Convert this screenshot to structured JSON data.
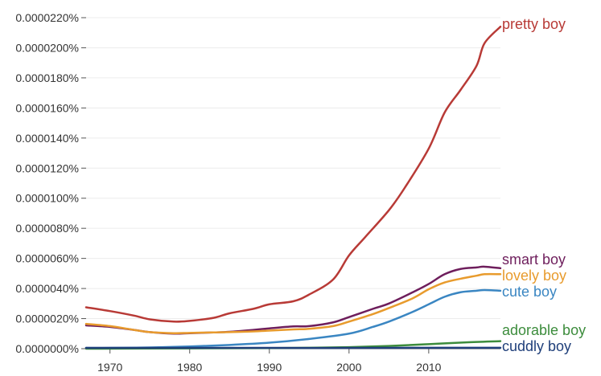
{
  "chart_data": {
    "type": "line",
    "title": "",
    "xlabel": "",
    "ylabel": "",
    "xlim": [
      1967,
      2019
    ],
    "ylim": [
      0,
      2.22e-07
    ],
    "grid": true,
    "x_ticks": [
      1970,
      1980,
      1990,
      2000,
      2010
    ],
    "x_tick_labels": [
      "1970",
      "1980",
      "1990",
      "2000",
      "2010"
    ],
    "y_ticks": [
      0,
      2e-08,
      4e-08,
      6e-08,
      8e-08,
      1e-07,
      1.2e-07,
      1.4e-07,
      1.6e-07,
      1.8e-07,
      2e-07,
      2.2e-07
    ],
    "y_tick_labels": [
      "0.0000000%",
      "0.0000020%",
      "0.0000040%",
      "0.0000060%",
      "0.0000080%",
      "0.0000100%",
      "0.0000120%",
      "0.0000140%",
      "0.0000160%",
      "0.0000180%",
      "0.0000200%",
      "0.0000220%"
    ],
    "legend": "direct labels at line ends",
    "series": [
      {
        "name": "pretty boy",
        "color": "#b83a36",
        "x": [
          1967,
          1970,
          1973,
          1975,
          1978,
          1980,
          1983,
          1985,
          1988,
          1990,
          1993,
          1995,
          1998,
          2000,
          2002,
          2005,
          2007,
          2010,
          2012,
          2014,
          2016,
          2017,
          2019
        ],
        "values": [
          2.75e-08,
          2.5e-08,
          2.2e-08,
          1.95e-08,
          1.8e-08,
          1.85e-08,
          2.05e-08,
          2.35e-08,
          2.65e-08,
          2.95e-08,
          3.15e-08,
          3.6e-08,
          4.6e-08,
          6.2e-08,
          7.4e-08,
          9.2e-08,
          1.07e-07,
          1.33e-07,
          1.57e-07,
          1.72e-07,
          1.88e-07,
          2.03e-07,
          2.14e-07
        ]
      },
      {
        "name": "smart boy",
        "color": "#6e1e5c",
        "x": [
          1967,
          1970,
          1973,
          1975,
          1978,
          1980,
          1983,
          1985,
          1988,
          1990,
          1993,
          1995,
          1998,
          2000,
          2003,
          2005,
          2008,
          2010,
          2012,
          2014,
          2016,
          2017,
          2019
        ],
        "values": [
          1.55e-08,
          1.45e-08,
          1.25e-08,
          1.1e-08,
          1e-08,
          1.03e-08,
          1.08e-08,
          1.12e-08,
          1.25e-08,
          1.35e-08,
          1.48e-08,
          1.5e-08,
          1.75e-08,
          2.1e-08,
          2.65e-08,
          3e-08,
          3.75e-08,
          4.3e-08,
          4.95e-08,
          5.3e-08,
          5.4e-08,
          5.45e-08,
          5.35e-08
        ]
      },
      {
        "name": "lovely boy",
        "color": "#e89b2d",
        "x": [
          1967,
          1970,
          1973,
          1975,
          1978,
          1980,
          1983,
          1985,
          1988,
          1990,
          1993,
          1995,
          1998,
          2000,
          2003,
          2005,
          2008,
          2010,
          2012,
          2014,
          2016,
          2017,
          2019
        ],
        "values": [
          1.65e-08,
          1.5e-08,
          1.25e-08,
          1.1e-08,
          1.03e-08,
          1.05e-08,
          1.08e-08,
          1.1e-08,
          1.15e-08,
          1.2e-08,
          1.28e-08,
          1.32e-08,
          1.5e-08,
          1.8e-08,
          2.3e-08,
          2.7e-08,
          3.35e-08,
          3.95e-08,
          4.4e-08,
          4.65e-08,
          4.85e-08,
          4.95e-08,
          4.95e-08
        ]
      },
      {
        "name": "cute boy",
        "color": "#3a86c2",
        "x": [
          1967,
          1970,
          1975,
          1980,
          1985,
          1990,
          1995,
          2000,
          2003,
          2005,
          2008,
          2010,
          2012,
          2014,
          2016,
          2017,
          2019
        ],
        "values": [
          5e-10,
          5e-10,
          8e-10,
          1.5e-09,
          2.5e-09,
          4e-09,
          6.5e-09,
          1e-08,
          1.45e-08,
          1.8e-08,
          2.45e-08,
          2.95e-08,
          3.45e-08,
          3.75e-08,
          3.85e-08,
          3.9e-08,
          3.85e-08
        ]
      },
      {
        "name": "adorable boy",
        "color": "#3c8c3c",
        "x": [
          1967,
          1980,
          1990,
          1995,
          2000,
          2005,
          2010,
          2015,
          2019
        ],
        "values": [
          0,
          2e-10,
          4e-10,
          6e-10,
          1e-09,
          1.8e-09,
          3e-09,
          4.3e-09,
          5e-09
        ]
      },
      {
        "name": "cuddly boy",
        "color": "#1f3f7a",
        "x": [
          1967,
          1990,
          2000,
          2010,
          2019
        ],
        "values": [
          5e-10,
          5e-10,
          5e-10,
          6e-10,
          6e-10
        ]
      }
    ]
  }
}
